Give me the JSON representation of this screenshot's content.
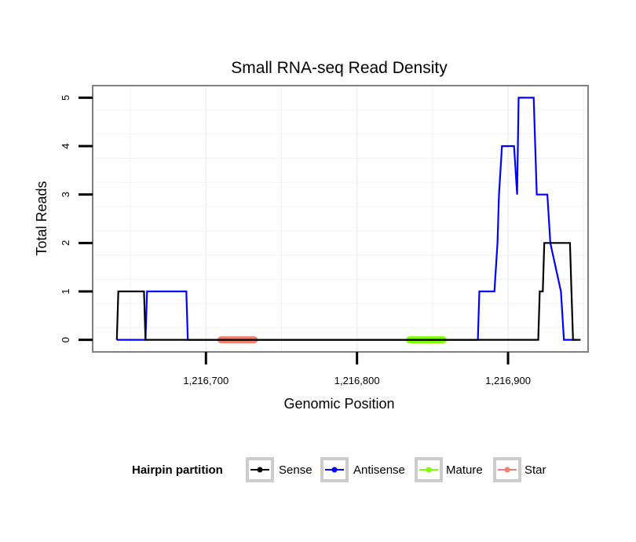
{
  "chart_data": {
    "type": "line",
    "title": "Small RNA-seq Read Density",
    "xlabel": "Genomic Position",
    "ylabel": "Total Reads",
    "xlim": [
      1216625,
      1216953
    ],
    "ylim": [
      -0.25,
      5.25
    ],
    "x_ticks": [
      1216700,
      1216800,
      1216900
    ],
    "x_tick_labels": [
      "1,216,700",
      "1,216,800",
      "1,216,900"
    ],
    "y_ticks": [
      0,
      1,
      2,
      3,
      4,
      5
    ],
    "y_tick_labels": [
      "0",
      "1",
      "2",
      "3",
      "4",
      "5"
    ],
    "grid": true,
    "legend_position": "bottom",
    "legend_title": "Hairpin partition",
    "series": [
      {
        "name": "Sense",
        "color": "#000000",
        "points": [
          [
            1216641,
            0
          ],
          [
            1216642,
            1
          ],
          [
            1216659,
            1
          ],
          [
            1216660,
            0
          ],
          [
            1216920,
            0
          ],
          [
            1216921,
            1
          ],
          [
            1216923,
            1
          ],
          [
            1216924,
            2
          ],
          [
            1216941,
            2
          ],
          [
            1216942,
            1
          ],
          [
            1216943,
            0
          ],
          [
            1216948,
            0
          ]
        ]
      },
      {
        "name": "Antisense",
        "color": "#0000ff",
        "points": [
          [
            1216641,
            0
          ],
          [
            1216660,
            0
          ],
          [
            1216661,
            1
          ],
          [
            1216687,
            1
          ],
          [
            1216688,
            0
          ],
          [
            1216880,
            0
          ],
          [
            1216881,
            1
          ],
          [
            1216891,
            1
          ],
          [
            1216893,
            2
          ],
          [
            1216894,
            3
          ],
          [
            1216896,
            4
          ],
          [
            1216904,
            4
          ],
          [
            1216906,
            3
          ],
          [
            1216907,
            5
          ],
          [
            1216917,
            5
          ],
          [
            1216919,
            3
          ],
          [
            1216926,
            3
          ],
          [
            1216928,
            2
          ],
          [
            1216935,
            1
          ],
          [
            1216937,
            0
          ],
          [
            1216945,
            0
          ]
        ]
      },
      {
        "name": "Mature",
        "color": "#7fff00",
        "points": [
          [
            1216835,
            0
          ],
          [
            1216857,
            0
          ]
        ]
      },
      {
        "name": "Star",
        "color": "#f08070",
        "points": [
          [
            1216710,
            0
          ],
          [
            1216732,
            0
          ]
        ]
      }
    ]
  }
}
